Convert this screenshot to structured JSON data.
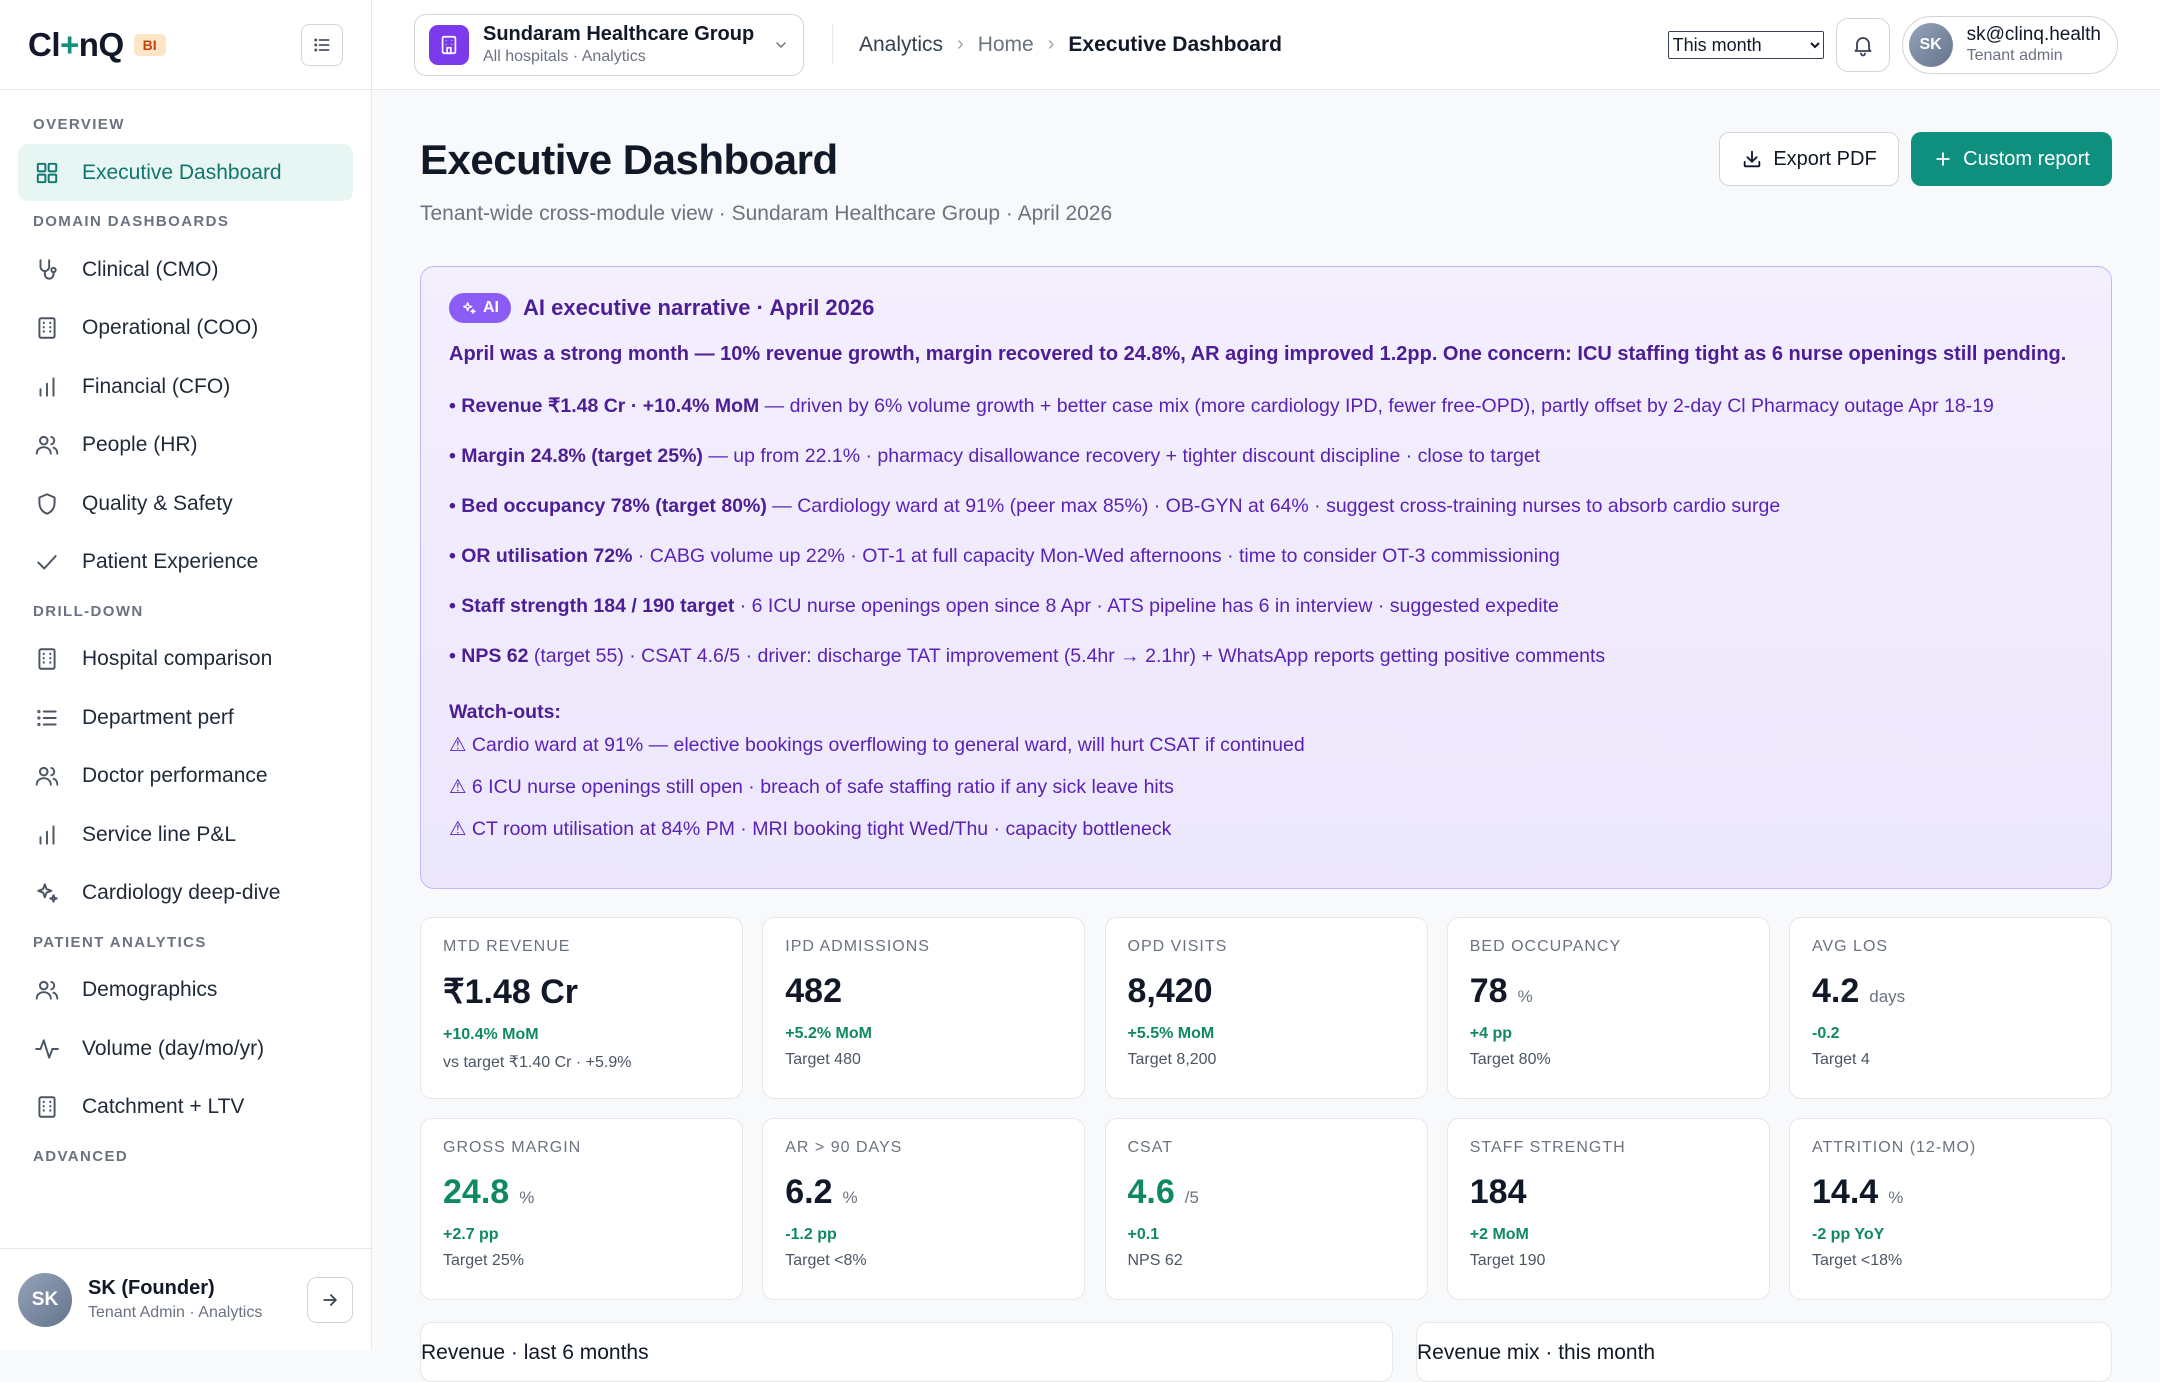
{
  "brand": {
    "logo_pre": "Cl",
    "logo_plus": "+",
    "logo_post": "nQ",
    "badge": "BI"
  },
  "sidebar": {
    "sections": [
      {
        "title": "OVERVIEW",
        "items": [
          {
            "label": "Executive Dashboard",
            "icon": "grid-icon",
            "active": true
          }
        ]
      },
      {
        "title": "DOMAIN DASHBOARDS",
        "items": [
          {
            "label": "Clinical (CMO)",
            "icon": "stethoscope-icon"
          },
          {
            "label": "Operational (COO)",
            "icon": "building-icon"
          },
          {
            "label": "Financial (CFO)",
            "icon": "bar-chart-icon"
          },
          {
            "label": "People (HR)",
            "icon": "users-icon"
          },
          {
            "label": "Quality & Safety",
            "icon": "shield-icon"
          },
          {
            "label": "Patient Experience",
            "icon": "check-icon"
          }
        ]
      },
      {
        "title": "DRILL-DOWN",
        "items": [
          {
            "label": "Hospital comparison",
            "icon": "building-icon"
          },
          {
            "label": "Department perf",
            "icon": "list-icon"
          },
          {
            "label": "Doctor performance",
            "icon": "users-icon"
          },
          {
            "label": "Service line P&L",
            "icon": "bar-chart-icon"
          },
          {
            "label": "Cardiology deep-dive",
            "icon": "sparkle-icon"
          }
        ]
      },
      {
        "title": "PATIENT ANALYTICS",
        "items": [
          {
            "label": "Demographics",
            "icon": "users-icon"
          },
          {
            "label": "Volume (day/mo/yr)",
            "icon": "activity-icon"
          },
          {
            "label": "Catchment + LTV",
            "icon": "building-icon"
          }
        ]
      },
      {
        "title": "ADVANCED",
        "items": []
      }
    ],
    "user": {
      "initials": "SK",
      "name": "SK (Founder)",
      "role": "Tenant Admin · Analytics"
    }
  },
  "topbar": {
    "tenant_name": "Sundaram Healthcare Group",
    "tenant_sub": "All hospitals · Analytics",
    "breadcrumb": [
      "Analytics",
      "Home",
      "Executive Dashboard"
    ],
    "period_selected": "This month",
    "user_initials": "SK",
    "user_email": "sk@clinq.health",
    "user_role": "Tenant admin"
  },
  "page": {
    "title": "Executive Dashboard",
    "subtitle": "Tenant-wide cross-module view · Sundaram Healthcare Group · April 2026",
    "export_label": "Export PDF",
    "custom_label": "Custom report"
  },
  "ai": {
    "pill": "AI",
    "title": "AI executive narrative · April 2026",
    "lead": "April was a strong month — 10% revenue growth, margin recovered to 24.8%, AR aging improved 1.2pp. One concern: ICU staffing tight as 6 nurse openings still pending.",
    "bullets": [
      {
        "bold": "• Revenue ₹1.48 Cr · +10.4% MoM",
        "rest": " — driven by 6% volume growth + better case mix (more cardiology IPD, fewer free-OPD), partly offset by 2-day Cl Pharmacy outage Apr 18-19"
      },
      {
        "bold": "• Margin 24.8% (target 25%)",
        "rest": " — up from 22.1% · pharmacy disallowance recovery + tighter discount discipline · close to target"
      },
      {
        "bold": "• Bed occupancy 78% (target 80%)",
        "rest": " — Cardiology ward at 91% (peer max 85%) · OB-GYN at 64% · suggest cross-training nurses to absorb cardio surge"
      },
      {
        "bold": "• OR utilisation 72%",
        "rest": " · CABG volume up 22% · OT-1 at full capacity Mon-Wed afternoons · time to consider OT-3 commissioning"
      },
      {
        "bold": "• Staff strength 184 / 190 target",
        "rest": " · 6 ICU nurse openings open since 8 Apr · ATS pipeline has 6 in interview · suggested expedite"
      },
      {
        "bold": "• NPS 62",
        "rest": " (target 55) · CSAT 4.6/5 · driver: discharge TAT improvement (5.4hr → 2.1hr) + WhatsApp reports getting positive comments"
      }
    ],
    "watch_title": "Watch-outs:",
    "watchouts": [
      "⚠ Cardio ward at 91% — elective bookings overflowing to general ward, will hurt CSAT if continued",
      "⚠ 6 ICU nurse openings still open · breach of safe staffing ratio if any sick leave hits",
      "⚠ CT room utilisation at 84% PM · MRI booking tight Wed/Thu · capacity bottleneck"
    ]
  },
  "kpis": [
    {
      "label": "MTD REVENUE",
      "value": "₹1.48 Cr",
      "unit": "",
      "delta": "+10.4% MoM",
      "target": "vs target ₹1.40 Cr · +5.9%",
      "green": false
    },
    {
      "label": "IPD ADMISSIONS",
      "value": "482",
      "unit": "",
      "delta": "+5.2% MoM",
      "target": "Target 480",
      "green": false
    },
    {
      "label": "OPD VISITS",
      "value": "8,420",
      "unit": "",
      "delta": "+5.5% MoM",
      "target": "Target 8,200",
      "green": false
    },
    {
      "label": "BED OCCUPANCY",
      "value": "78",
      "unit": "%",
      "delta": "+4 pp",
      "target": "Target 80%",
      "green": false
    },
    {
      "label": "AVG LOS",
      "value": "4.2",
      "unit": "days",
      "delta": "-0.2",
      "target": "Target 4",
      "green": false
    },
    {
      "label": "GROSS MARGIN",
      "value": "24.8",
      "unit": "%",
      "delta": "+2.7 pp",
      "target": "Target 25%",
      "green": true
    },
    {
      "label": "AR > 90 DAYS",
      "value": "6.2",
      "unit": "%",
      "delta": "-1.2 pp",
      "target": "Target <8%",
      "green": false
    },
    {
      "label": "CSAT",
      "value": "4.6",
      "unit": "/5",
      "delta": "+0.1",
      "target": "NPS 62",
      "green": true
    },
    {
      "label": "STAFF STRENGTH",
      "value": "184",
      "unit": "",
      "delta": "+2 MoM",
      "target": "Target 190",
      "green": false
    },
    {
      "label": "ATTRITION (12-MO)",
      "value": "14.4",
      "unit": "%",
      "delta": "-2 pp YoY",
      "target": "Target <18%",
      "green": false
    }
  ],
  "bottom": {
    "revenue_title": "Revenue · last 6 months",
    "mix_title": "Revenue mix · this month"
  },
  "colors": {
    "accent": "#0f8f7e",
    "ai_purple": "#8b5cf6",
    "positive": "#0f8a5f"
  }
}
